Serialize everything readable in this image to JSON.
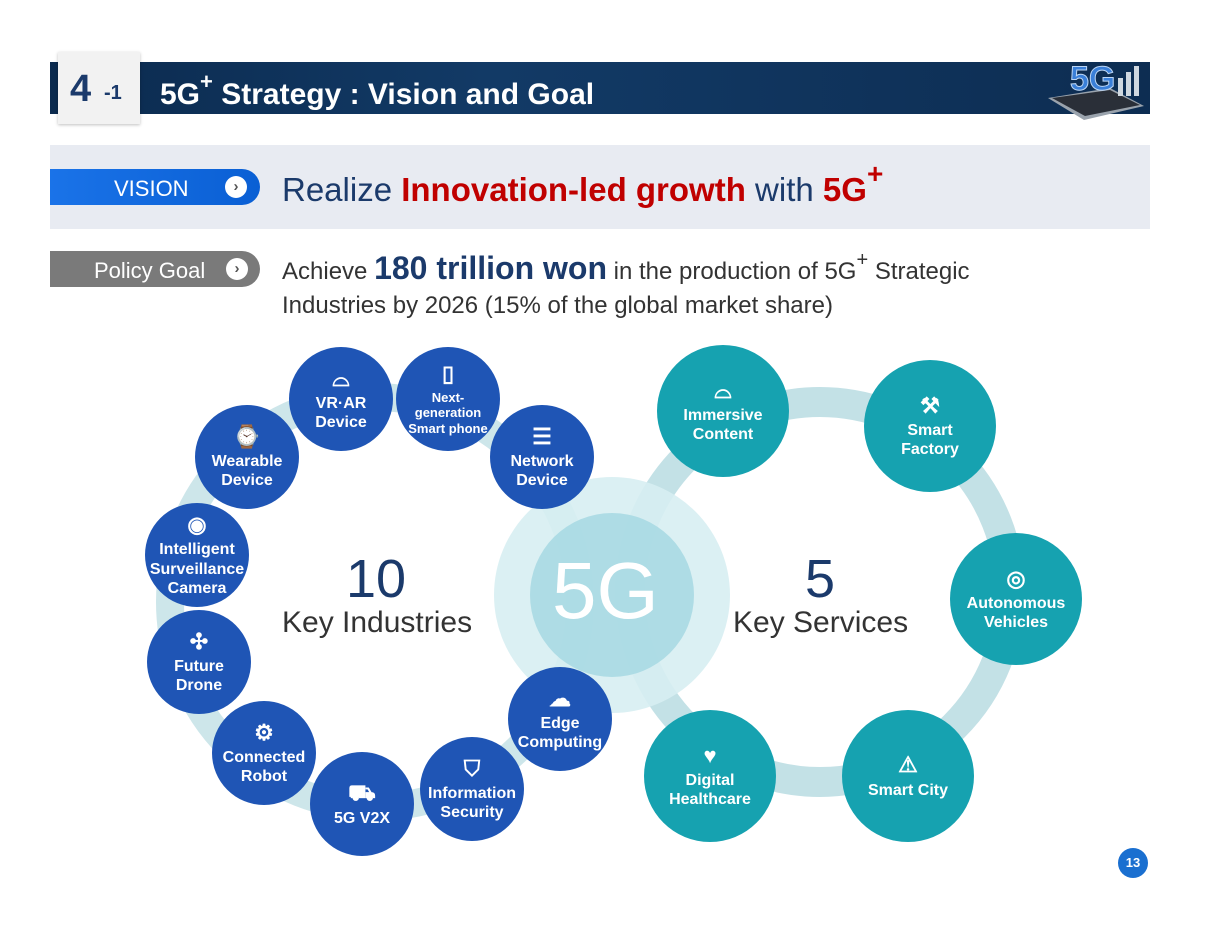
{
  "header": {
    "section_num": "4",
    "section_sub": "-1",
    "title_prefix": "5G",
    "title_sup": "+",
    "title_rest": " Strategy : Vision and Goal",
    "logo_text": "5G"
  },
  "vision": {
    "label": "VISION",
    "text_pre": "Realize ",
    "text_highlight": "Innovation-led growth",
    "text_mid": " with ",
    "text_5g": "5G",
    "text_sup": "+"
  },
  "policy": {
    "label": "Policy Goal",
    "pre": "Achieve ",
    "amount": "180 trillion won",
    "mid": " in the production of 5G",
    "sup": "+",
    "post": " Strategic",
    "line2": "Industries by 2026 (15% of the global market share)"
  },
  "diagram": {
    "center_text": "5G",
    "industries": {
      "count": "10",
      "label": "Key Industries",
      "items": [
        "VR·AR Device",
        "Next-generation Smart phone",
        "Network Device",
        "Wearable Device",
        "Intelligent Surveillance Camera",
        "Future Drone",
        "Connected Robot",
        "5G V2X",
        "Information Security",
        "Edge Computing"
      ]
    },
    "services": {
      "count": "5",
      "label": "Key Services",
      "items": [
        "Immersive Content",
        "Smart Factory",
        "Autonomous Vehicles",
        "Smart City",
        "Digital Healthcare"
      ]
    },
    "colors": {
      "industry": "#1f55b5",
      "service": "#16a2b0",
      "ring": "#c9e3e8"
    }
  },
  "page_number": "13"
}
